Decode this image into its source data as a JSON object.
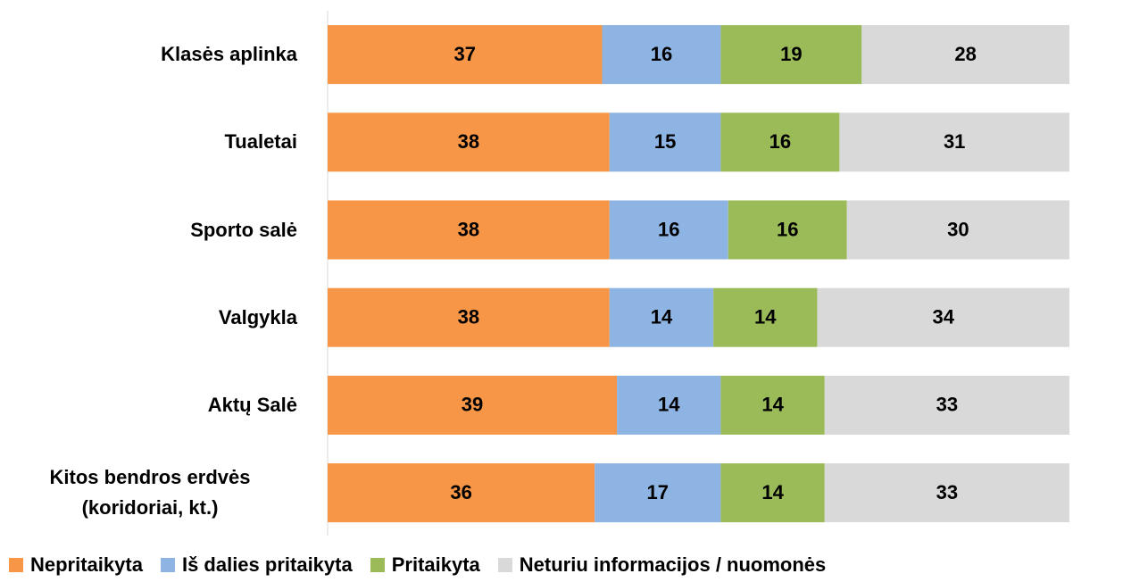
{
  "chart_data": {
    "type": "stacked_barh",
    "categories": [
      "Klasės aplinka",
      "Tualetai",
      "Sporto salė",
      "Valgykla",
      "Aktų Salė",
      "Kitos bendros erdvės (koridoriai, kt.)"
    ],
    "series": [
      {
        "name": "Nepritaikyta",
        "color": "#f79646",
        "values": [
          37,
          38,
          38,
          38,
          39,
          36
        ]
      },
      {
        "name": "Iš dalies pritaikyta",
        "color": "#8db4e2",
        "values": [
          16,
          15,
          16,
          14,
          14,
          17
        ]
      },
      {
        "name": "Pritaikyta",
        "color": "#9bbb59",
        "values": [
          19,
          16,
          16,
          14,
          14,
          14
        ]
      },
      {
        "name": "Neturiu informacijos / nuomonės",
        "color": "#d9d9d9",
        "values": [
          28,
          31,
          30,
          34,
          33,
          33
        ]
      }
    ],
    "xlim": [
      0,
      100
    ]
  }
}
